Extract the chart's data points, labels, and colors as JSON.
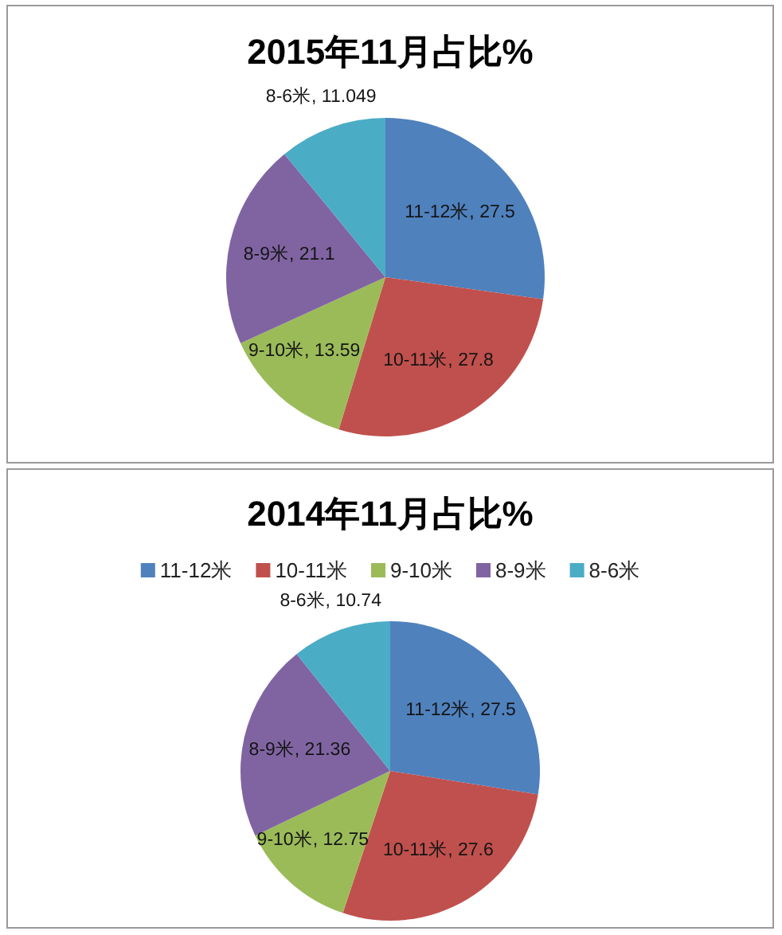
{
  "chart_data": [
    {
      "type": "pie",
      "title": "2015年11月占比%",
      "categories": [
        "11-12米, 27.5",
        "10-11米, 27.8",
        "9-10米, 13.59",
        "8-9米, 21.1",
        "8-6米, 11.049"
      ],
      "values": [
        27.5,
        27.8,
        13.59,
        21.1,
        11.049
      ],
      "colors": [
        "#4f81bd",
        "#c0504d",
        "#9bbb59",
        "#8064a2",
        "#4bacc6"
      ]
    },
    {
      "type": "pie",
      "title": "2014年11月占比%",
      "categories": [
        "11-12米",
        "10-11米",
        "9-10米",
        "8-9米",
        "8-6米"
      ],
      "values": [
        27.5,
        27.6,
        12.75,
        21.36,
        10.74
      ],
      "colors": [
        "#4f81bd",
        "#c0504d",
        "#9bbb59",
        "#8064a2",
        "#4bacc6"
      ],
      "value_labels": [
        "11-12米, 27.5",
        "10-11米, 27.6",
        "9-10米, 12.75",
        "8-9米, 21.36",
        "8-6米, 10.74"
      ],
      "legend": "top"
    }
  ]
}
